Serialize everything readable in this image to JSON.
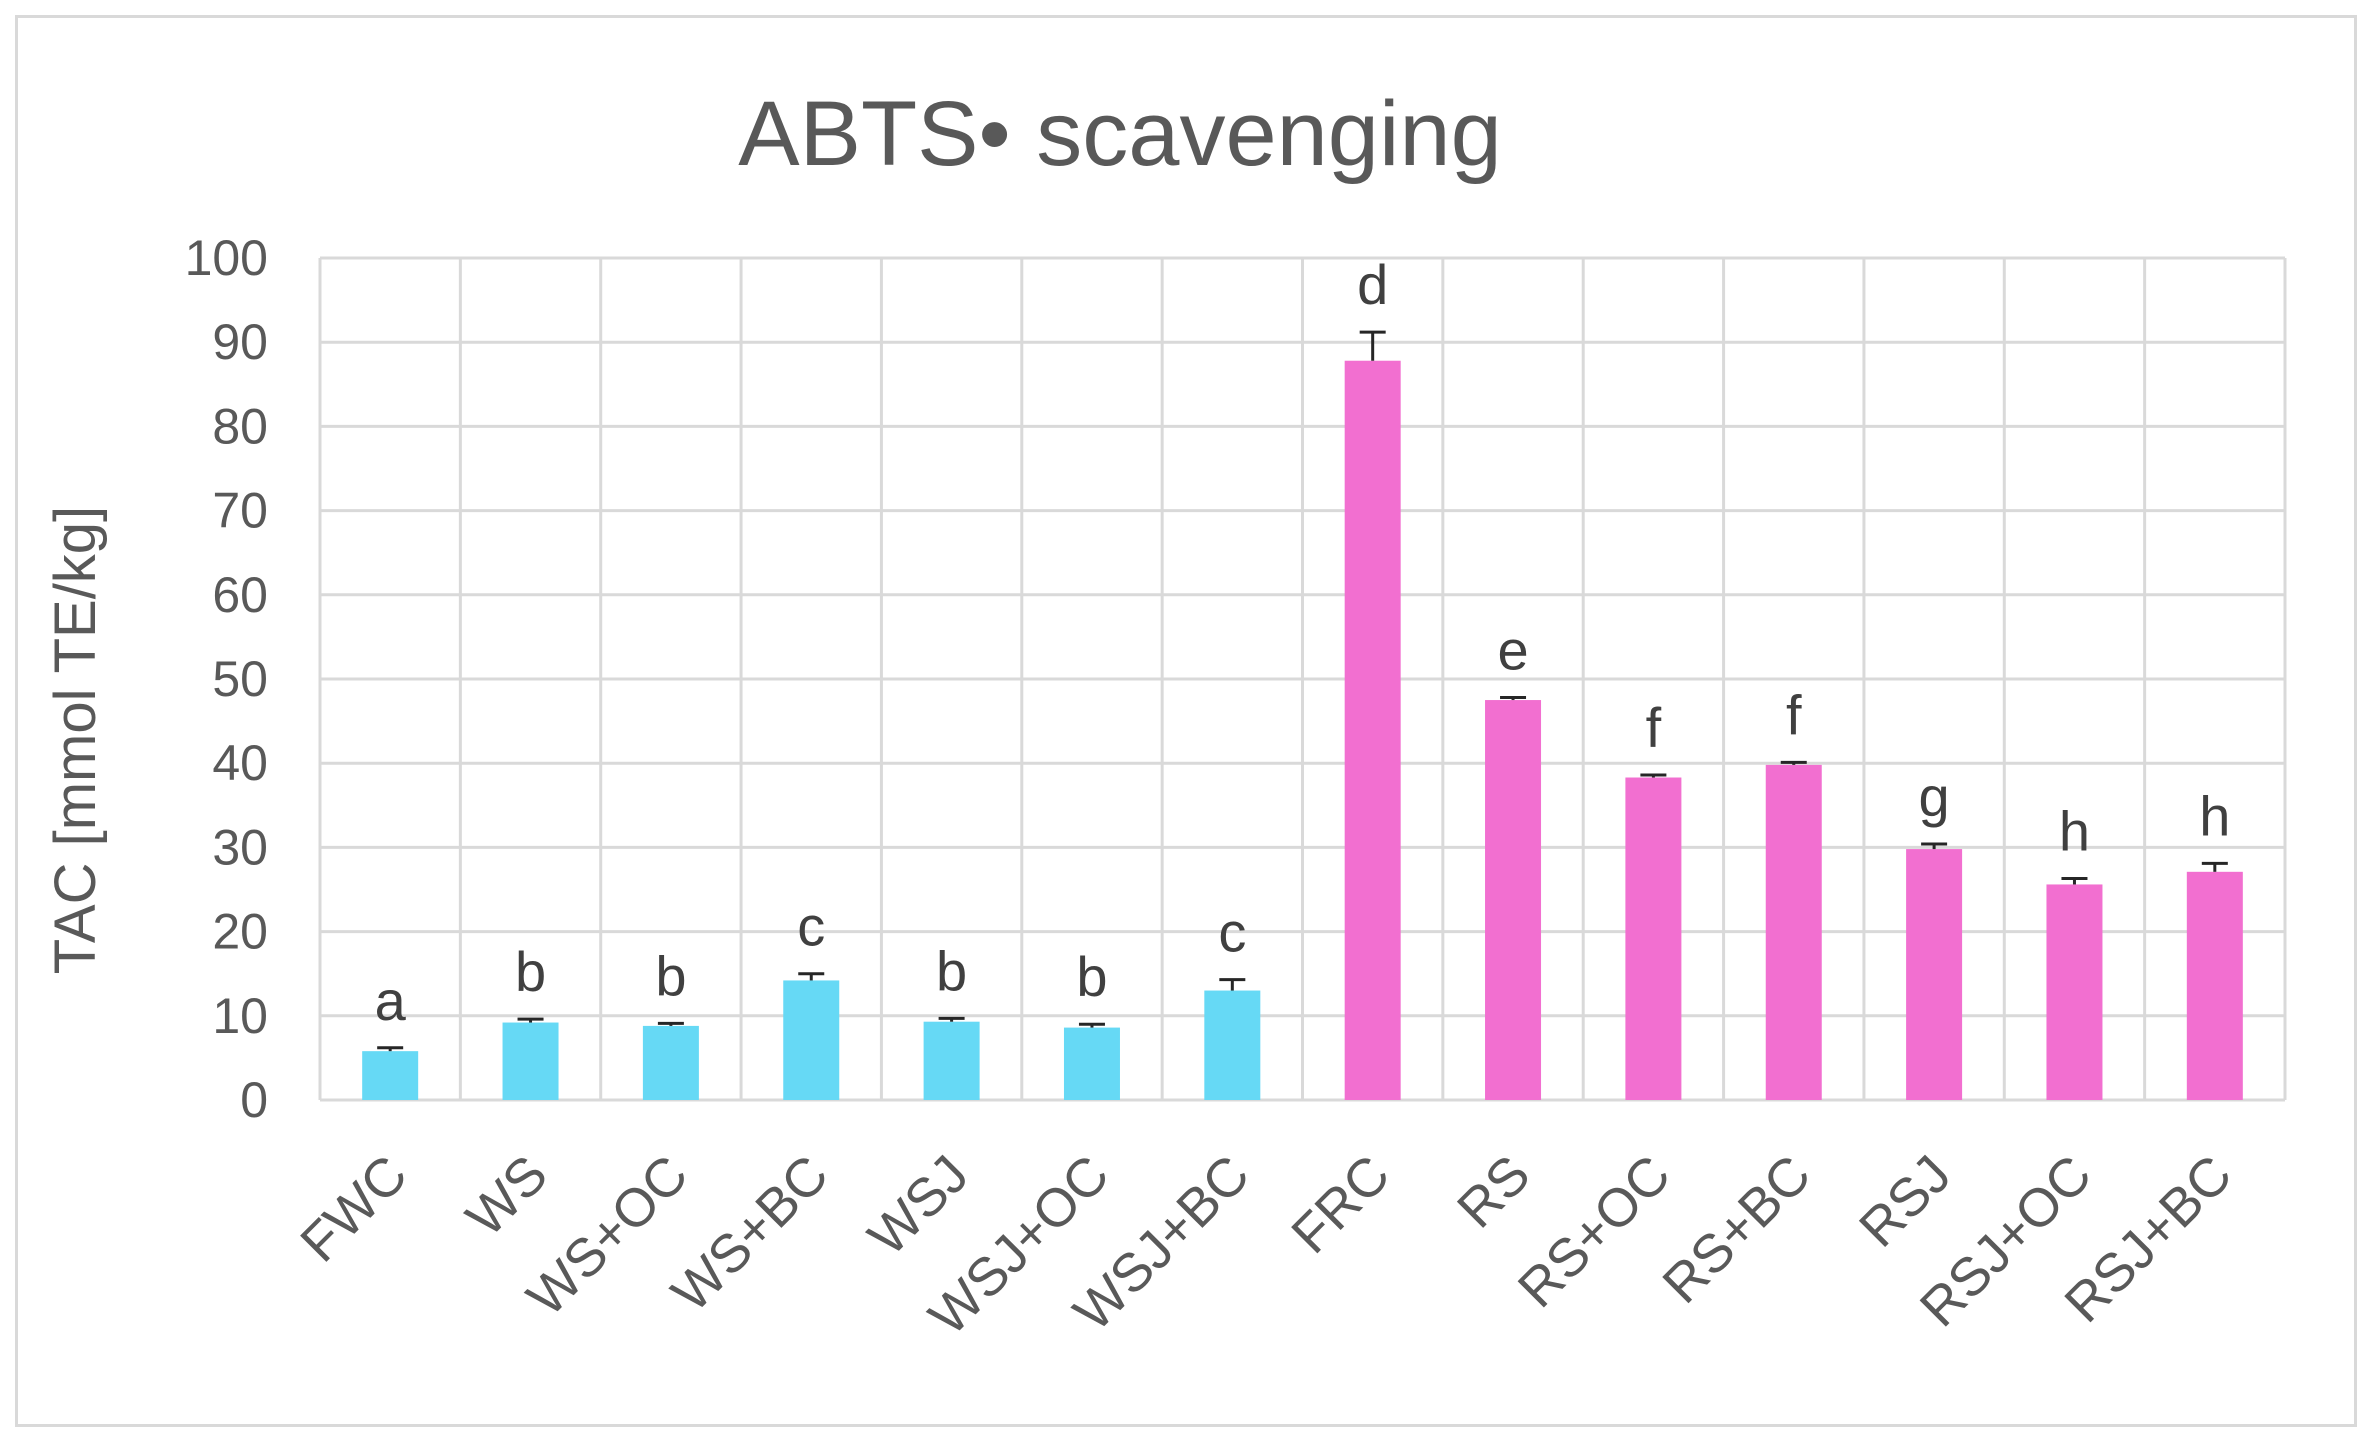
{
  "chart_data": {
    "type": "bar",
    "title": "ABTS• scavenging",
    "ylabel": "TAC [mmol TE/kg]",
    "xlabel": "",
    "ylim": [
      0,
      100
    ],
    "yticks": [
      0,
      10,
      20,
      30,
      40,
      50,
      60,
      70,
      80,
      90,
      100
    ],
    "grid": true,
    "categories": [
      "FWC",
      "WS",
      "WS+OC",
      "WS+BC",
      "WSJ",
      "WSJ+OC",
      "WSJ+BC",
      "FRC",
      "RS",
      "RS+OC",
      "RS+BC",
      "RSJ",
      "RSJ+OC",
      "RSJ+BC"
    ],
    "values": [
      5.8,
      9.2,
      8.8,
      14.2,
      9.3,
      8.6,
      13.0,
      87.8,
      47.5,
      38.3,
      39.8,
      29.8,
      25.6,
      27.1
    ],
    "errors": [
      0.4,
      0.4,
      0.3,
      0.8,
      0.4,
      0.4,
      1.3,
      3.4,
      0.3,
      0.3,
      0.3,
      0.6,
      0.7,
      1.0
    ],
    "significance_letters": [
      "a",
      "b",
      "b",
      "c",
      "b",
      "b",
      "c",
      "d",
      "e",
      "f",
      "f",
      "g",
      "h",
      "h"
    ],
    "bar_colors": [
      "#66d9f5",
      "#66d9f5",
      "#66d9f5",
      "#66d9f5",
      "#66d9f5",
      "#66d9f5",
      "#66d9f5",
      "#f26fd0",
      "#f26fd0",
      "#f26fd0",
      "#f26fd0",
      "#f26fd0",
      "#f26fd0",
      "#f26fd0"
    ]
  }
}
